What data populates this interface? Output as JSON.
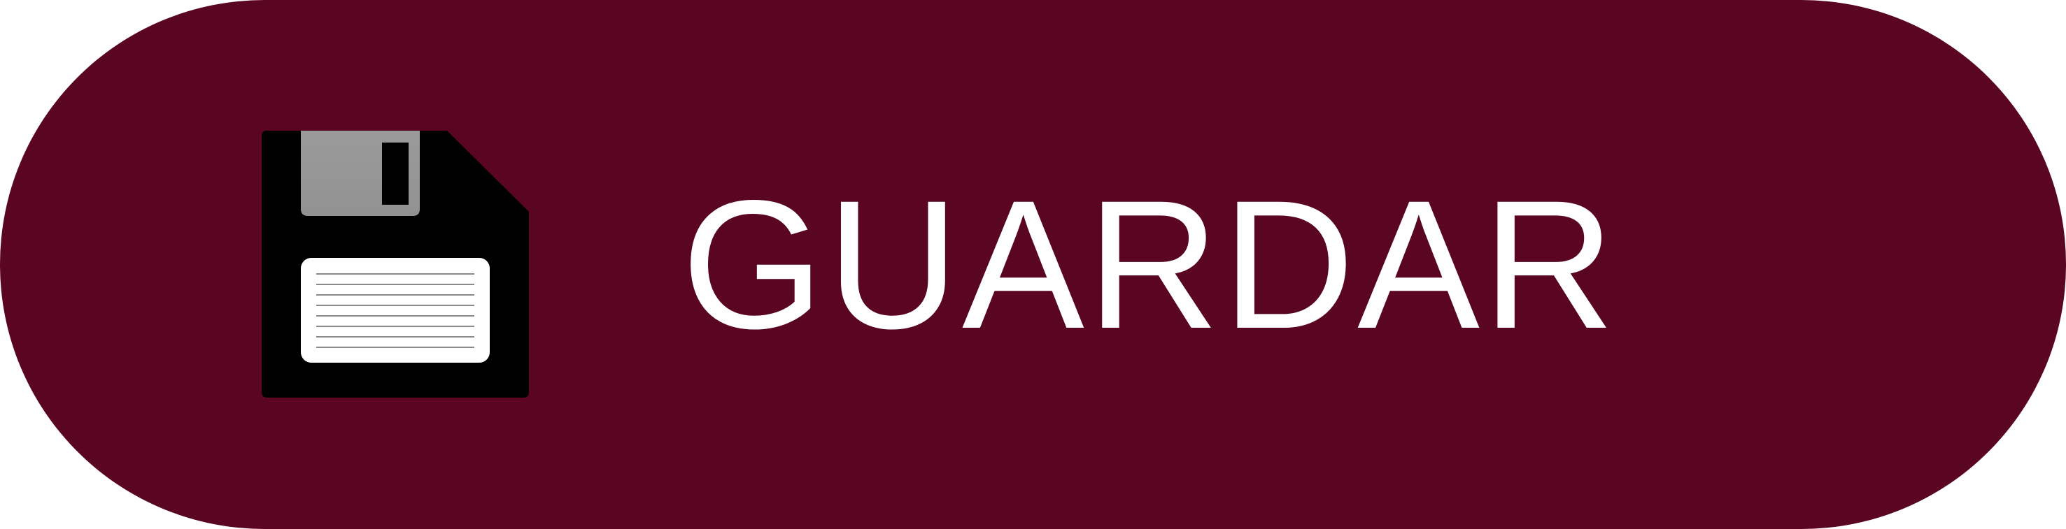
{
  "button": {
    "label": "GUARDAR",
    "icon": "floppy-disk-icon",
    "background_color": "#5a0521",
    "text_color": "#ffffff"
  }
}
